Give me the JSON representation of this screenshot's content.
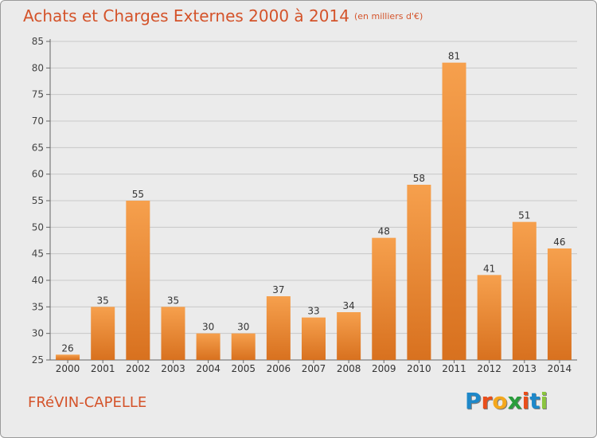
{
  "header": {
    "title": "Achats et Charges Externes 2000 à 2014",
    "unit": "(en milliers d'€)"
  },
  "footer": {
    "commune": "FRéVIN-CAPELLE",
    "logo_text": "Proxiti",
    "logo_colors": [
      "#1e88c9",
      "#e94e1b",
      "#f4a81d",
      "#2a9d3c",
      "#e94e1b",
      "#1e88c9",
      "#8bc53f"
    ]
  },
  "colors": {
    "title": "#d4532a",
    "bar_top": "#f6a04d",
    "bar_bottom": "#d8711f",
    "grid": "#c8c8c8",
    "background": "#ebebeb"
  },
  "chart_data": {
    "type": "bar",
    "categories": [
      "2000",
      "2001",
      "2002",
      "2003",
      "2004",
      "2005",
      "2006",
      "2007",
      "2008",
      "2009",
      "2010",
      "2011",
      "2012",
      "2013",
      "2014"
    ],
    "values": [
      26,
      35,
      55,
      35,
      30,
      30,
      37,
      33,
      34,
      48,
      58,
      81,
      41,
      51,
      46
    ],
    "ylim": [
      25,
      85
    ],
    "yticks": [
      25,
      30,
      35,
      40,
      45,
      50,
      55,
      60,
      65,
      70,
      75,
      80,
      85
    ],
    "grid": "horizontal",
    "data_labels": true
  }
}
